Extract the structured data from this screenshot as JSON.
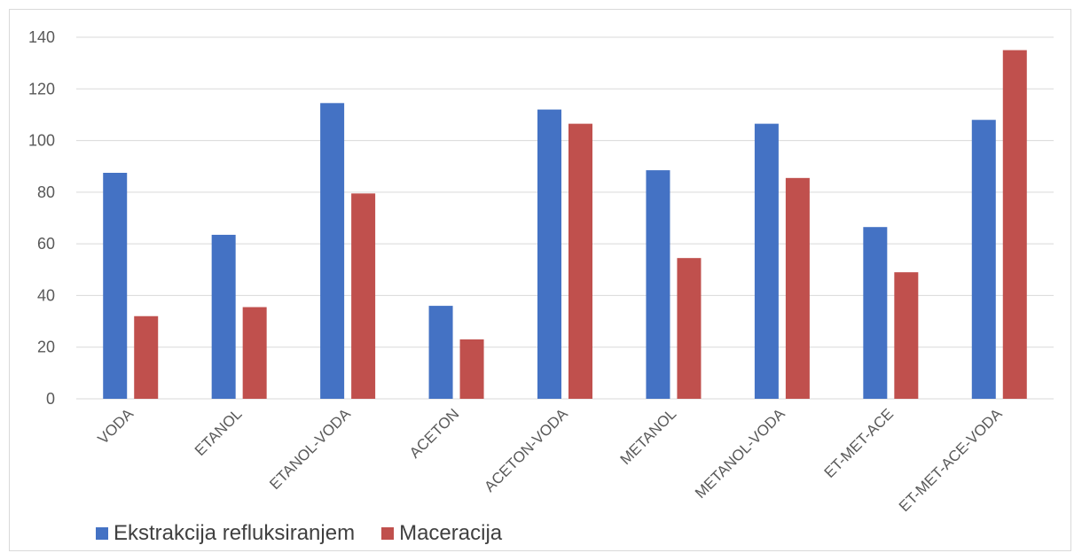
{
  "chart_data": {
    "type": "bar",
    "categories": [
      "VODA",
      "ETANOL",
      "ETANOL-VODA",
      "ACETON",
      "ACETON-VODA",
      "METANOL",
      "METANOL-VODA",
      "ET-MET-ACE",
      "ET-MET-ACE-VODA"
    ],
    "series": [
      {
        "name": "Ekstrakcija refluksiranjem",
        "color": "#4472c4",
        "values": [
          87.5,
          63.5,
          114.5,
          36,
          112,
          88.5,
          106.5,
          66.5,
          108
        ]
      },
      {
        "name": "Maceracija",
        "color": "#c0504d",
        "values": [
          32,
          35.5,
          79.5,
          23,
          106.5,
          54.5,
          85.5,
          49,
          135
        ]
      }
    ],
    "yticks": [
      0,
      20,
      40,
      60,
      80,
      100,
      120,
      140
    ],
    "ylim": [
      0,
      140
    ],
    "grid": true,
    "legend_position": "bottom-left",
    "title": "",
    "xlabel": "",
    "ylabel": ""
  }
}
